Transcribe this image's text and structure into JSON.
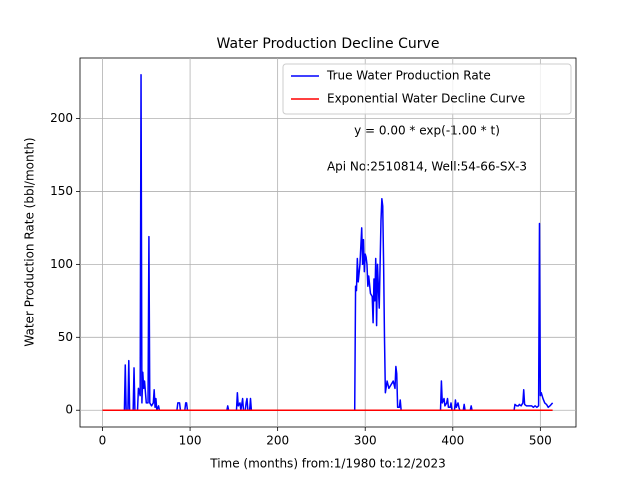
{
  "chart_data": {
    "type": "line",
    "title": "Water Production Decline Curve",
    "xlabel": "Time (months) from:1/1980 to:12/2023",
    "ylabel": "Water Production Rate (bbl/month)",
    "annotations": [
      "y = 0.00 * exp(-1.00 * t)",
      "Api No:2510814, Well:54-66-SX-3"
    ],
    "xlim": [
      -25.7,
      540.7
    ],
    "ylim": [
      -11.5,
      241.5
    ],
    "xticks": [
      0,
      100,
      200,
      300,
      400,
      500
    ],
    "yticks": [
      0,
      50,
      100,
      150,
      200
    ],
    "grid": true,
    "legend": "upper right",
    "series": [
      {
        "name": "True Water Production Rate",
        "color": "#0000ff",
        "x": [
          0,
          25,
          26,
          27,
          29,
          30,
          31,
          35,
          36,
          37,
          40,
          41,
          43,
          44,
          45,
          46,
          47,
          48,
          50,
          52,
          53,
          54,
          56,
          58,
          59,
          60,
          61,
          62,
          64,
          65,
          85,
          86,
          88,
          89,
          94,
          95,
          96,
          97,
          142,
          143,
          144,
          153,
          154,
          155,
          157,
          158,
          160,
          161,
          163,
          164,
          165,
          166,
          168,
          169,
          170,
          288,
          289,
          290,
          291,
          292,
          294,
          296,
          297,
          298,
          299,
          300,
          301,
          302,
          303,
          304,
          306,
          308,
          309,
          310,
          311,
          312,
          313,
          314,
          316,
          318,
          319,
          320,
          321,
          322,
          323,
          325,
          327,
          330,
          332,
          334,
          335,
          336,
          337,
          339,
          340,
          341,
          386,
          387,
          388,
          390,
          391,
          393,
          394,
          395,
          397,
          398,
          399,
          402,
          403,
          404,
          406,
          407,
          408,
          412,
          413,
          414,
          420,
          421,
          422,
          470,
          471,
          473,
          475,
          476,
          478,
          480,
          481,
          482,
          484,
          486,
          490,
          492,
          494,
          496,
          498,
          499,
          500,
          501,
          503,
          505,
          507,
          509,
          511,
          514
        ],
        "values": [
          0,
          0,
          31,
          0,
          0,
          34,
          0,
          0,
          29,
          0,
          0,
          15,
          10,
          230,
          5,
          26,
          15,
          20,
          5,
          5,
          119,
          5,
          3,
          5,
          14,
          2,
          8,
          0,
          3,
          0,
          0,
          5,
          5,
          0,
          0,
          5,
          5,
          0,
          0,
          3,
          0,
          0,
          12,
          3,
          5,
          0,
          8,
          0,
          0,
          5,
          8,
          0,
          0,
          8,
          0,
          0,
          85,
          82,
          104,
          88,
          100,
          125,
          100,
          117,
          95,
          107,
          105,
          100,
          85,
          92,
          80,
          78,
          60,
          90,
          75,
          104,
          58,
          100,
          70,
          130,
          145,
          140,
          100,
          50,
          12,
          20,
          15,
          18,
          20,
          15,
          30,
          25,
          2,
          2,
          7,
          0,
          0,
          20,
          5,
          8,
          3,
          5,
          8,
          2,
          2,
          5,
          0,
          0,
          7,
          2,
          5,
          2,
          0,
          0,
          4,
          0,
          0,
          3,
          0,
          0,
          4,
          3,
          3,
          4,
          3,
          5,
          14,
          4,
          3,
          3,
          3,
          2,
          3,
          2,
          3,
          128,
          10,
          12,
          8,
          5,
          4,
          2,
          3,
          5
        ]
      },
      {
        "name": "Exponential Water Decline Curve",
        "color": "#ff0000",
        "x": [
          0,
          514
        ],
        "values": [
          0,
          0
        ]
      }
    ]
  }
}
